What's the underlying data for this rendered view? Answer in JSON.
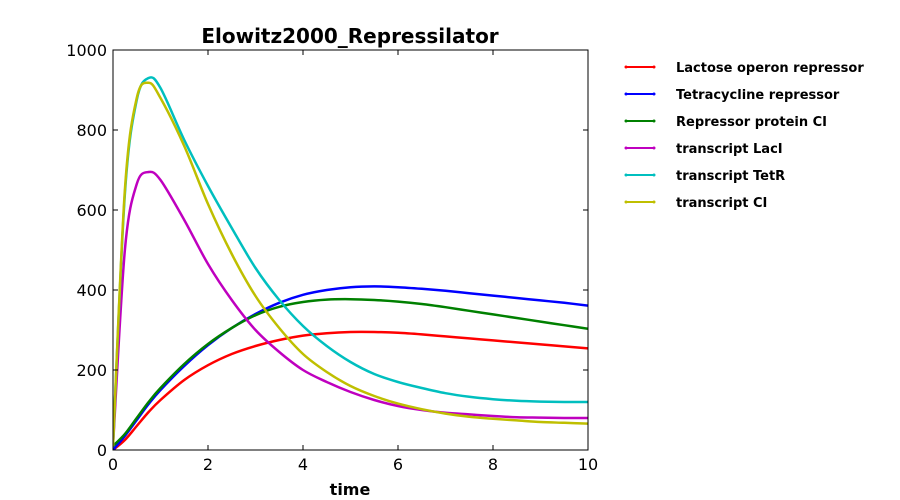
{
  "chart_data": {
    "type": "line",
    "title": "Elowitz2000_Repressilator",
    "xlabel": "time",
    "ylabel": "",
    "xlim": [
      0,
      10
    ],
    "ylim": [
      0,
      1000
    ],
    "xticks": [
      0,
      2,
      4,
      6,
      8,
      10
    ],
    "yticks": [
      0,
      200,
      400,
      600,
      800,
      1000
    ],
    "grid": false,
    "legend_position": "outside right",
    "x": [
      0,
      0.25,
      0.5,
      0.75,
      1,
      1.5,
      2,
      2.5,
      3,
      3.5,
      4,
      4.5,
      5,
      5.5,
      6,
      6.5,
      7,
      7.5,
      8,
      8.5,
      9,
      9.5,
      10
    ],
    "series": [
      {
        "name": "Lactose operon repressor",
        "color": "#ff0000",
        "values": [
          0,
          25,
          60,
          95,
          125,
          175,
          212,
          240,
          260,
          275,
          286,
          292,
          295,
          295,
          293,
          289,
          284,
          279,
          274,
          269,
          264,
          259,
          254
        ]
      },
      {
        "name": "Tetracycline repressor",
        "color": "#0000ff",
        "values": [
          0,
          35,
          75,
          115,
          150,
          210,
          262,
          305,
          340,
          368,
          388,
          400,
          407,
          409,
          407,
          403,
          398,
          392,
          386,
          380,
          374,
          368,
          361
        ]
      },
      {
        "name": "Repressor protein CI",
        "color": "#008000",
        "values": [
          10,
          40,
          80,
          120,
          155,
          215,
          265,
          305,
          337,
          358,
          370,
          376,
          377,
          375,
          371,
          365,
          357,
          348,
          339,
          330,
          321,
          312,
          303
        ]
      },
      {
        "name": "transcript LacI",
        "color": "#bf00bf",
        "values": [
          10,
          500,
          665,
          695,
          675,
          575,
          465,
          375,
          300,
          245,
          200,
          170,
          145,
          125,
          110,
          100,
          93,
          89,
          85,
          82,
          81,
          80,
          80
        ]
      },
      {
        "name": "transcript TetR",
        "color": "#00bfbf",
        "values": [
          10,
          640,
          875,
          930,
          905,
          775,
          660,
          555,
          455,
          375,
          310,
          260,
          220,
          190,
          170,
          155,
          142,
          133,
          127,
          123,
          121,
          120,
          120
        ]
      },
      {
        "name": "transcript CI",
        "color": "#bfbf00",
        "values": [
          10,
          650,
          880,
          918,
          880,
          760,
          615,
          490,
          385,
          305,
          240,
          195,
          160,
          135,
          116,
          102,
          91,
          83,
          78,
          74,
          70,
          68,
          66
        ]
      }
    ]
  }
}
